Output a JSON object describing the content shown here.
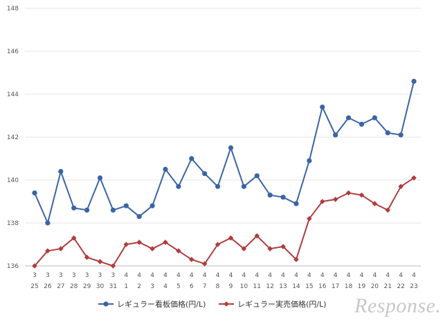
{
  "chart_data": {
    "type": "line",
    "categories": [
      [
        "3",
        "25"
      ],
      [
        "3",
        "26"
      ],
      [
        "3",
        "27"
      ],
      [
        "3",
        "28"
      ],
      [
        "3",
        "29"
      ],
      [
        "3",
        "30"
      ],
      [
        "3",
        "31"
      ],
      [
        "4",
        "1"
      ],
      [
        "4",
        "2"
      ],
      [
        "4",
        "3"
      ],
      [
        "4",
        "4"
      ],
      [
        "4",
        "5"
      ],
      [
        "4",
        "6"
      ],
      [
        "4",
        "7"
      ],
      [
        "4",
        "8"
      ],
      [
        "4",
        "9"
      ],
      [
        "4",
        "10"
      ],
      [
        "4",
        "11"
      ],
      [
        "4",
        "12"
      ],
      [
        "4",
        "13"
      ],
      [
        "4",
        "14"
      ],
      [
        "4",
        "15"
      ],
      [
        "4",
        "16"
      ],
      [
        "4",
        "17"
      ],
      [
        "4",
        "18"
      ],
      [
        "4",
        "19"
      ],
      [
        "4",
        "20"
      ],
      [
        "4",
        "21"
      ],
      [
        "4",
        "22"
      ],
      [
        "4",
        "23"
      ]
    ],
    "series": [
      {
        "name": "レギュラー看板価格(円/L)",
        "color": "#3a64a4",
        "marker": "circle",
        "values": [
          139.4,
          138.0,
          140.4,
          138.7,
          138.6,
          140.1,
          138.6,
          138.8,
          138.3,
          138.8,
          140.5,
          139.7,
          141.0,
          140.3,
          139.7,
          141.5,
          139.7,
          140.2,
          139.3,
          139.2,
          138.9,
          140.9,
          143.4,
          142.1,
          142.9,
          142.6,
          142.9,
          142.2,
          142.1,
          144.6
        ]
      },
      {
        "name": "レギュラー実売価格(円/L)",
        "color": "#b03c3c",
        "marker": "diamond",
        "values": [
          136.0,
          136.7,
          136.8,
          137.3,
          136.4,
          136.2,
          136.0,
          137.0,
          137.1,
          136.8,
          137.1,
          136.7,
          136.3,
          136.1,
          137.0,
          137.3,
          136.8,
          137.4,
          136.8,
          136.9,
          136.3,
          138.2,
          139.0,
          139.1,
          139.4,
          139.3,
          138.9,
          138.6,
          139.7,
          140.1
        ]
      }
    ],
    "ylim": [
      136,
      148
    ],
    "yticks": [
      136,
      138,
      140,
      142,
      144,
      146,
      148
    ],
    "grid": true,
    "legend_position": "bottom",
    "title": "",
    "xlabel": "",
    "ylabel": ""
  },
  "watermark": "Response."
}
